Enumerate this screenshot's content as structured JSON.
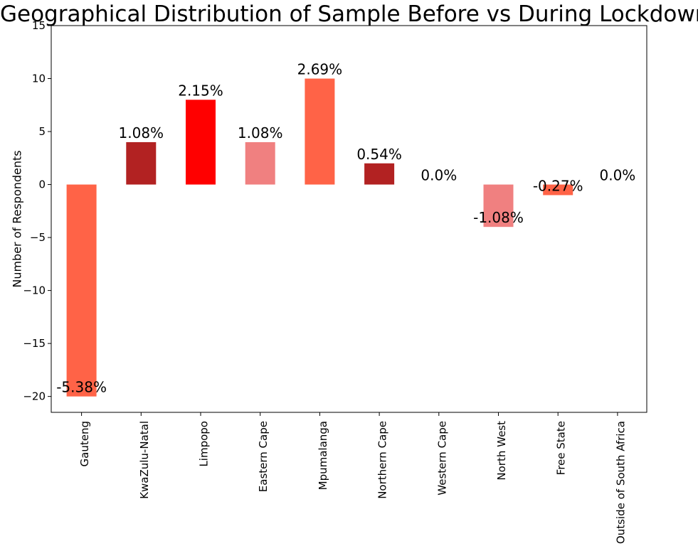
{
  "chart_data": {
    "type": "bar",
    "title": "Geographical Distribution of Sample Before vs During Lockdown",
    "xlabel": "",
    "ylabel": "Number of Respondents",
    "ylim": [
      -21.5,
      15
    ],
    "yticks": [
      -20,
      -15,
      -10,
      -5,
      0,
      5,
      10,
      15
    ],
    "ytick_labels": [
      "−20",
      "−15",
      "−10",
      "−5",
      "0",
      "5",
      "10",
      "15"
    ],
    "grid": false,
    "categories": [
      "Gauteng",
      "KwaZulu-Natal",
      "Limpopo",
      "Eastern Cape",
      "Mpumalanga",
      "Northern Cape",
      "Western Cape",
      "North West",
      "Free State",
      "Outside of South Africa"
    ],
    "values": [
      -20,
      4,
      8,
      4,
      10,
      2,
      0,
      -4,
      -1,
      0
    ],
    "data_labels": [
      "-5.38%",
      "1.08%",
      "2.15%",
      "1.08%",
      "2.69%",
      "0.54%",
      "0.0%",
      "-1.08%",
      "-0.27%",
      "0.0%"
    ],
    "colors": [
      "#ff6347",
      "#b22222",
      "#ff0000",
      "#f08080",
      "#ff6347",
      "#b22222",
      "#ff6347",
      "#f08080",
      "#ff6347",
      "#b22222"
    ]
  }
}
